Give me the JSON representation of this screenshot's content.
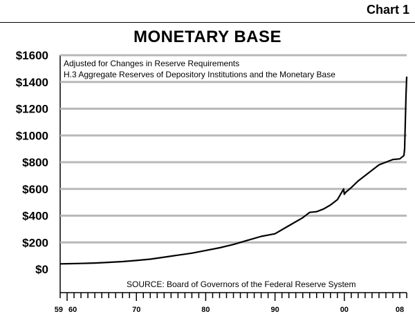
{
  "header": {
    "chart_label": "Chart 1",
    "title": "MONETARY BASE"
  },
  "chart_data": {
    "type": "line",
    "title": "MONETARY BASE",
    "subtitle_lines": [
      "Adjusted for Changes in Reserve Requirements",
      "H.3 Aggregate Reserves of Depository Institutions and the Monetary Base"
    ],
    "source": "SOURCE:  Board of Governors of the Federal Reserve System",
    "xlabel": "",
    "ylabel": "",
    "xlim": [
      1959,
      2009
    ],
    "ylim": [
      0,
      1600
    ],
    "grid": true,
    "y_ticks": [
      {
        "value": 0,
        "label": "$0"
      },
      {
        "value": 200,
        "label": "$200"
      },
      {
        "value": 400,
        "label": "$400"
      },
      {
        "value": 600,
        "label": "$600"
      },
      {
        "value": 800,
        "label": "$800"
      },
      {
        "value": 1000,
        "label": "$1000"
      },
      {
        "value": 1200,
        "label": "$1200"
      },
      {
        "value": 1400,
        "label": "$1400"
      },
      {
        "value": 1600,
        "label": "$1600"
      }
    ],
    "x_ticks": [
      {
        "value": 1959,
        "label": "59"
      },
      {
        "value": 1960,
        "label": "60"
      },
      {
        "value": 1970,
        "label": "70"
      },
      {
        "value": 1980,
        "label": "80"
      },
      {
        "value": 1990,
        "label": "90"
      },
      {
        "value": 2000,
        "label": "00"
      },
      {
        "value": 2008,
        "label": "08"
      }
    ],
    "series": [
      {
        "x": [
          1959,
          1960,
          1962,
          1964,
          1966,
          1968,
          1970,
          1972,
          1974,
          1976,
          1978,
          1980,
          1982,
          1984,
          1986,
          1988,
          1990,
          1992,
          1994,
          1995,
          1996,
          1997,
          1998,
          1999,
          1999.9,
          2000.0,
          2000.2,
          2001,
          2002,
          2003,
          2004,
          2005,
          2006,
          2007,
          2008.0,
          2008.6,
          2008.7,
          2008.8,
          2008.9,
          2009.0
        ],
        "y": [
          40,
          41,
          43,
          46,
          51,
          57,
          65,
          75,
          90,
          105,
          120,
          140,
          160,
          185,
          215,
          245,
          265,
          325,
          385,
          425,
          430,
          450,
          480,
          520,
          600,
          560,
          575,
          610,
          660,
          700,
          740,
          780,
          800,
          820,
          825,
          850,
          900,
          1100,
          1300,
          1440
        ]
      }
    ]
  }
}
